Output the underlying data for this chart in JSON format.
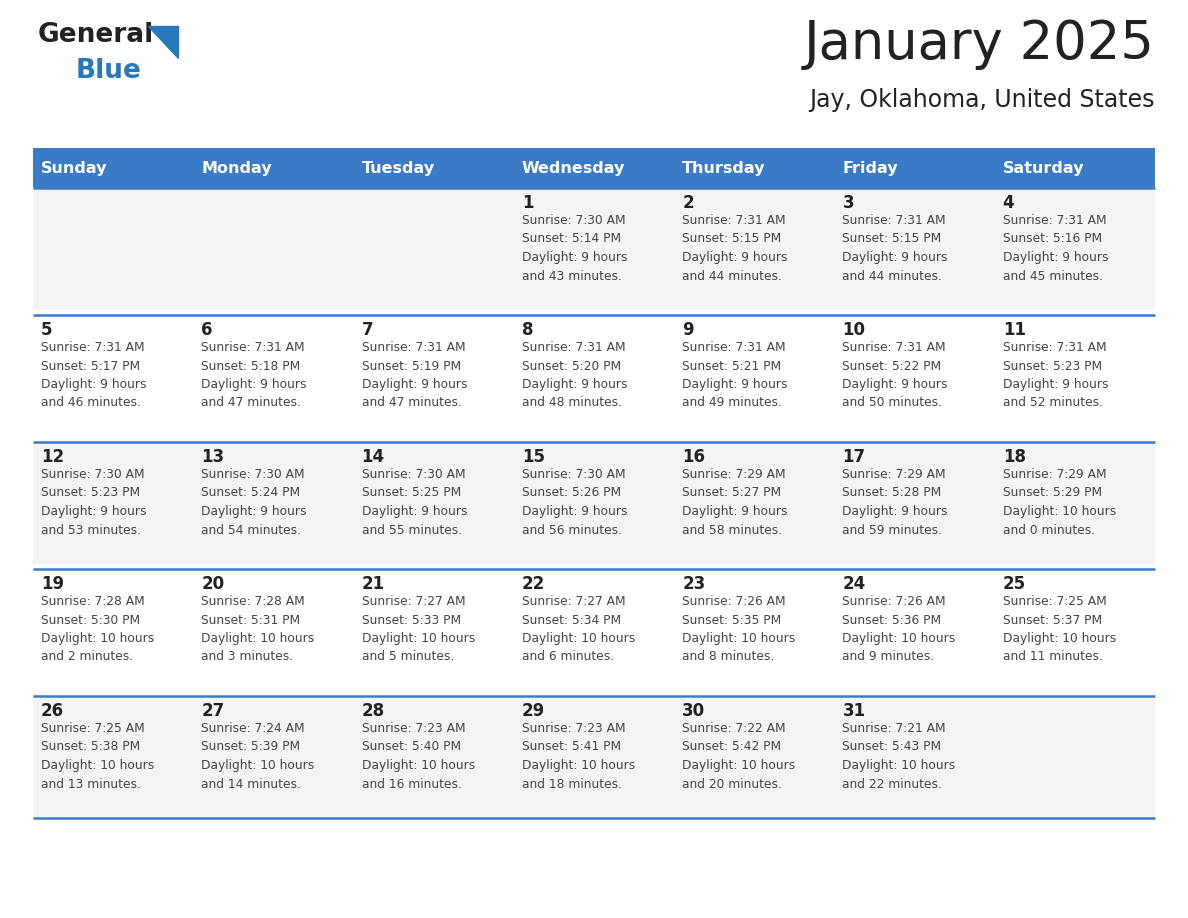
{
  "title": "January 2025",
  "subtitle": "Jay, Oklahoma, United States",
  "header_color": "#3a7bc8",
  "header_text_color": "#FFFFFF",
  "day_names": [
    "Sunday",
    "Monday",
    "Tuesday",
    "Wednesday",
    "Thursday",
    "Friday",
    "Saturday"
  ],
  "row_bg_even": "#F4F4F4",
  "row_bg_odd": "#FFFFFF",
  "border_color": "#3a7bc8",
  "text_color": "#444444",
  "date_color": "#222222",
  "logo_general_color": "#222222",
  "logo_blue_color": "#2878BE",
  "weeks": [
    {
      "days": [
        {
          "day": null,
          "info": null
        },
        {
          "day": null,
          "info": null
        },
        {
          "day": null,
          "info": null
        },
        {
          "day": 1,
          "info": "Sunrise: 7:30 AM\nSunset: 5:14 PM\nDaylight: 9 hours\nand 43 minutes."
        },
        {
          "day": 2,
          "info": "Sunrise: 7:31 AM\nSunset: 5:15 PM\nDaylight: 9 hours\nand 44 minutes."
        },
        {
          "day": 3,
          "info": "Sunrise: 7:31 AM\nSunset: 5:15 PM\nDaylight: 9 hours\nand 44 minutes."
        },
        {
          "day": 4,
          "info": "Sunrise: 7:31 AM\nSunset: 5:16 PM\nDaylight: 9 hours\nand 45 minutes."
        }
      ]
    },
    {
      "days": [
        {
          "day": 5,
          "info": "Sunrise: 7:31 AM\nSunset: 5:17 PM\nDaylight: 9 hours\nand 46 minutes."
        },
        {
          "day": 6,
          "info": "Sunrise: 7:31 AM\nSunset: 5:18 PM\nDaylight: 9 hours\nand 47 minutes."
        },
        {
          "day": 7,
          "info": "Sunrise: 7:31 AM\nSunset: 5:19 PM\nDaylight: 9 hours\nand 47 minutes."
        },
        {
          "day": 8,
          "info": "Sunrise: 7:31 AM\nSunset: 5:20 PM\nDaylight: 9 hours\nand 48 minutes."
        },
        {
          "day": 9,
          "info": "Sunrise: 7:31 AM\nSunset: 5:21 PM\nDaylight: 9 hours\nand 49 minutes."
        },
        {
          "day": 10,
          "info": "Sunrise: 7:31 AM\nSunset: 5:22 PM\nDaylight: 9 hours\nand 50 minutes."
        },
        {
          "day": 11,
          "info": "Sunrise: 7:31 AM\nSunset: 5:23 PM\nDaylight: 9 hours\nand 52 minutes."
        }
      ]
    },
    {
      "days": [
        {
          "day": 12,
          "info": "Sunrise: 7:30 AM\nSunset: 5:23 PM\nDaylight: 9 hours\nand 53 minutes."
        },
        {
          "day": 13,
          "info": "Sunrise: 7:30 AM\nSunset: 5:24 PM\nDaylight: 9 hours\nand 54 minutes."
        },
        {
          "day": 14,
          "info": "Sunrise: 7:30 AM\nSunset: 5:25 PM\nDaylight: 9 hours\nand 55 minutes."
        },
        {
          "day": 15,
          "info": "Sunrise: 7:30 AM\nSunset: 5:26 PM\nDaylight: 9 hours\nand 56 minutes."
        },
        {
          "day": 16,
          "info": "Sunrise: 7:29 AM\nSunset: 5:27 PM\nDaylight: 9 hours\nand 58 minutes."
        },
        {
          "day": 17,
          "info": "Sunrise: 7:29 AM\nSunset: 5:28 PM\nDaylight: 9 hours\nand 59 minutes."
        },
        {
          "day": 18,
          "info": "Sunrise: 7:29 AM\nSunset: 5:29 PM\nDaylight: 10 hours\nand 0 minutes."
        }
      ]
    },
    {
      "days": [
        {
          "day": 19,
          "info": "Sunrise: 7:28 AM\nSunset: 5:30 PM\nDaylight: 10 hours\nand 2 minutes."
        },
        {
          "day": 20,
          "info": "Sunrise: 7:28 AM\nSunset: 5:31 PM\nDaylight: 10 hours\nand 3 minutes."
        },
        {
          "day": 21,
          "info": "Sunrise: 7:27 AM\nSunset: 5:33 PM\nDaylight: 10 hours\nand 5 minutes."
        },
        {
          "day": 22,
          "info": "Sunrise: 7:27 AM\nSunset: 5:34 PM\nDaylight: 10 hours\nand 6 minutes."
        },
        {
          "day": 23,
          "info": "Sunrise: 7:26 AM\nSunset: 5:35 PM\nDaylight: 10 hours\nand 8 minutes."
        },
        {
          "day": 24,
          "info": "Sunrise: 7:26 AM\nSunset: 5:36 PM\nDaylight: 10 hours\nand 9 minutes."
        },
        {
          "day": 25,
          "info": "Sunrise: 7:25 AM\nSunset: 5:37 PM\nDaylight: 10 hours\nand 11 minutes."
        }
      ]
    },
    {
      "days": [
        {
          "day": 26,
          "info": "Sunrise: 7:25 AM\nSunset: 5:38 PM\nDaylight: 10 hours\nand 13 minutes."
        },
        {
          "day": 27,
          "info": "Sunrise: 7:24 AM\nSunset: 5:39 PM\nDaylight: 10 hours\nand 14 minutes."
        },
        {
          "day": 28,
          "info": "Sunrise: 7:23 AM\nSunset: 5:40 PM\nDaylight: 10 hours\nand 16 minutes."
        },
        {
          "day": 29,
          "info": "Sunrise: 7:23 AM\nSunset: 5:41 PM\nDaylight: 10 hours\nand 18 minutes."
        },
        {
          "day": 30,
          "info": "Sunrise: 7:22 AM\nSunset: 5:42 PM\nDaylight: 10 hours\nand 20 minutes."
        },
        {
          "day": 31,
          "info": "Sunrise: 7:21 AM\nSunset: 5:43 PM\nDaylight: 10 hours\nand 22 minutes."
        },
        {
          "day": null,
          "info": null
        }
      ]
    }
  ]
}
